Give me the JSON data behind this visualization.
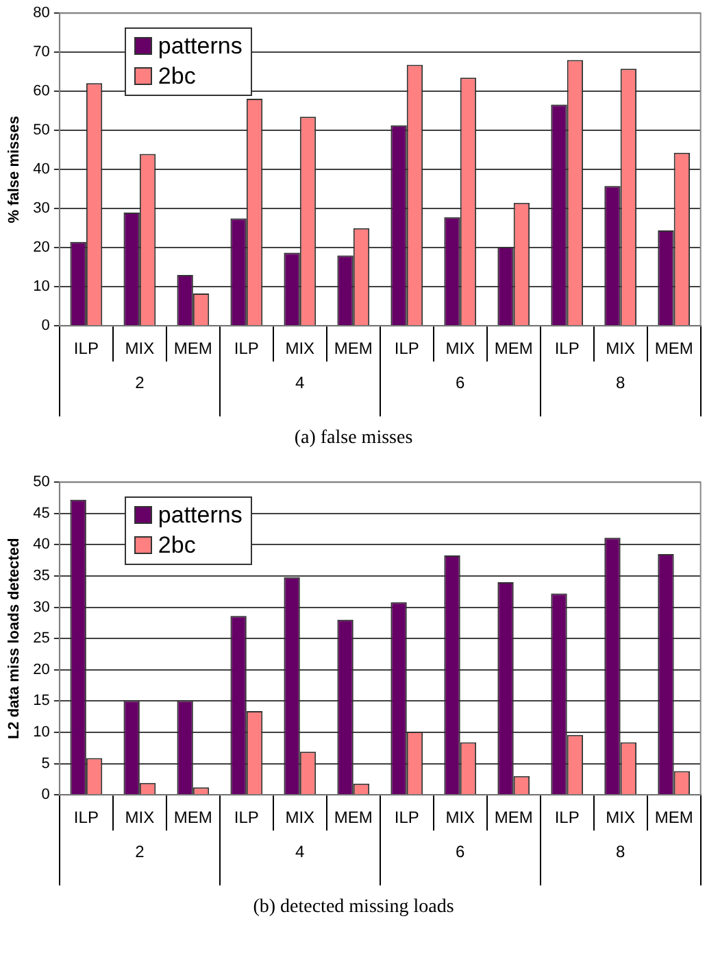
{
  "chart_data": [
    {
      "type": "bar",
      "title": "(a) false misses",
      "ylabel": "% false misses",
      "categories": [
        "ILP",
        "MIX",
        "MEM",
        "ILP",
        "MIX",
        "MEM",
        "ILP",
        "MIX",
        "MEM",
        "ILP",
        "MIX",
        "MEM"
      ],
      "series": [
        {
          "name": "patterns",
          "color": "#660066",
          "values": [
            21.5,
            29,
            13,
            27.5,
            18.7,
            18,
            51.3,
            27.8,
            20.2,
            56.6,
            35.8,
            24.4
          ]
        },
        {
          "name": "2bc",
          "color": "#ff8080",
          "values": [
            62.1,
            44,
            8.3,
            58.1,
            53.5,
            25,
            66.8,
            63.5,
            31.5,
            68,
            65.8,
            44.3
          ]
        }
      ],
      "annotations": [
        "2",
        "4",
        "6",
        "8"
      ],
      "ylim": [
        0,
        80
      ],
      "yticks": [
        0,
        10,
        20,
        30,
        40,
        50,
        60,
        70,
        80
      ],
      "grid": "y",
      "legend": "top left"
    },
    {
      "type": "bar",
      "title": "(b) detected missing loads",
      "ylabel": "L2 data miss loads detected",
      "categories": [
        "ILP",
        "MIX",
        "MEM",
        "ILP",
        "MIX",
        "MEM",
        "ILP",
        "MIX",
        "MEM",
        "ILP",
        "MIX",
        "MEM"
      ],
      "series": [
        {
          "name": "patterns",
          "color": "#660066",
          "values": [
            47.2,
            15.1,
            15.1,
            28.6,
            34.8,
            28,
            30.8,
            38.3,
            34,
            32.2,
            41.1,
            38.5
          ]
        },
        {
          "name": "2bc",
          "color": "#ff8080",
          "values": [
            5.9,
            1.9,
            1.2,
            13.4,
            6.9,
            1.8,
            10.1,
            8.4,
            3,
            9.6,
            8.4,
            3.8
          ]
        }
      ],
      "annotations": [
        "2",
        "4",
        "6",
        "8"
      ],
      "ylim": [
        0,
        50
      ],
      "yticks": [
        0,
        5,
        10,
        15,
        20,
        25,
        30,
        35,
        40,
        45,
        50
      ],
      "grid": "y",
      "legend": "top left"
    }
  ]
}
